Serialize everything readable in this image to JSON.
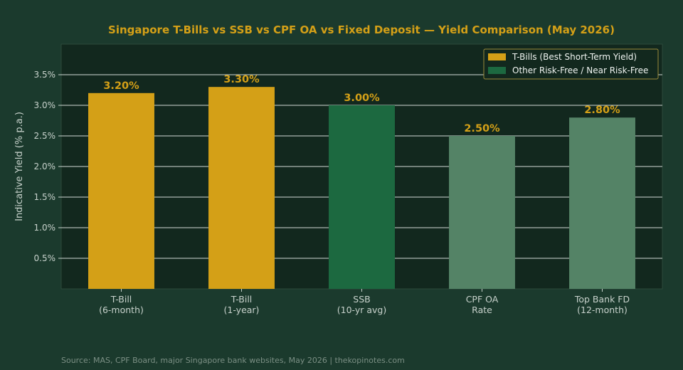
{
  "colors": {
    "background": "#1b3a2d",
    "plot_bg": "#12281e",
    "gold": "#d4a017",
    "dark_green": "#1c6940",
    "muted_green": "#548366",
    "text_light": "#c8d2cc",
    "grid": "#e8ede9"
  },
  "source_note": "Source: MAS, CPF Board, major Singapore bank websites, May 2026  |  thekopinotes.com",
  "chart_data": {
    "type": "bar",
    "title": "Singapore T-Bills vs SSB vs CPF OA vs Fixed Deposit — Yield Comparison (May 2026)",
    "xlabel": "",
    "ylabel": "Indicative Yield (% p.a.)",
    "ylim": [
      0,
      4.0
    ],
    "yticks": [
      0.5,
      1.0,
      1.5,
      2.0,
      2.5,
      3.0,
      3.5
    ],
    "ytick_labels": [
      "0.5%",
      "1.0%",
      "1.5%",
      "2.0%",
      "2.5%",
      "3.0%",
      "3.5%"
    ],
    "grid": true,
    "legend_position": "top-right",
    "categories": [
      [
        "T-Bill",
        "(6-month)"
      ],
      [
        "T-Bill",
        "(1-year)"
      ],
      [
        "SSB",
        "(10-yr avg)"
      ],
      [
        "CPF OA",
        "Rate"
      ],
      [
        "Top Bank FD",
        "(12-month)"
      ]
    ],
    "values": [
      3.2,
      3.3,
      3.0,
      2.5,
      2.8
    ],
    "data_labels": [
      "3.20%",
      "3.30%",
      "3.00%",
      "2.50%",
      "2.80%"
    ],
    "bar_colors": [
      "#d4a017",
      "#d4a017",
      "#1c6940",
      "#548366",
      "#548366"
    ],
    "legend": [
      {
        "label": "T-Bills (Best Short-Term Yield)",
        "color": "#d4a017"
      },
      {
        "label": "Other Risk-Free / Near Risk-Free",
        "color": "#1c6940"
      }
    ]
  }
}
